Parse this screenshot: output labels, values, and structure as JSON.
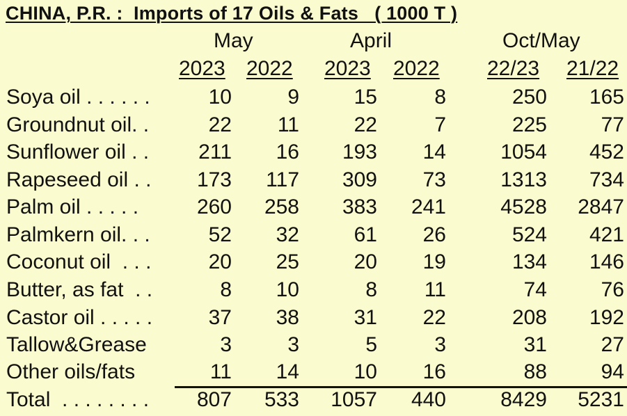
{
  "title": "CHINA, P.R. :  Imports of 17 Oils & Fats   ( 1000 T )",
  "column_groups": [
    "May",
    "April",
    "Oct/May"
  ],
  "columns": [
    "2023",
    "2022",
    "2023",
    "2022",
    "22/23",
    "21/22"
  ],
  "rows": [
    {
      "label": "Soya oil . . . . . .",
      "values": [
        "10",
        "9",
        "15",
        "8",
        "250",
        "165"
      ]
    },
    {
      "label": "Groundnut oil. .",
      "values": [
        "22",
        "11",
        "22",
        "7",
        "225",
        "77"
      ]
    },
    {
      "label": "Sunflower oil . .",
      "values": [
        "211",
        "16",
        "193",
        "14",
        "1054",
        "452"
      ]
    },
    {
      "label": "Rapeseed oil . .",
      "values": [
        "173",
        "117",
        "309",
        "73",
        "1313",
        "734"
      ]
    },
    {
      "label": "Palm oil . . . . .",
      "values": [
        "260",
        "258",
        "383",
        "241",
        "4528",
        "2847"
      ]
    },
    {
      "label": "Palmkern oil. . .",
      "values": [
        "52",
        "32",
        "61",
        "26",
        "524",
        "421"
      ]
    },
    {
      "label": "Coconut oil  . . .",
      "values": [
        "20",
        "25",
        "20",
        "19",
        "134",
        "146"
      ]
    },
    {
      "label": "Butter, as fat  . .",
      "values": [
        "8",
        "10",
        "8",
        "11",
        "74",
        "76"
      ]
    },
    {
      "label": "Castor oil . . . . .",
      "values": [
        "37",
        "38",
        "31",
        "22",
        "208",
        "192"
      ]
    },
    {
      "label": "Tallow&Grease",
      "values": [
        "3",
        "3",
        "5",
        "3",
        "31",
        "27"
      ]
    },
    {
      "label": "Other oils/fats",
      "values": [
        "11",
        "14",
        "10",
        "16",
        "88",
        "94"
      ]
    }
  ],
  "total": {
    "label": "Total  . . . . . . . .",
    "values": [
      "807",
      "533",
      "1057",
      "440",
      "8429",
      "5231"
    ]
  },
  "colors": {
    "background": "#fbfbd0",
    "text": "#111111"
  }
}
